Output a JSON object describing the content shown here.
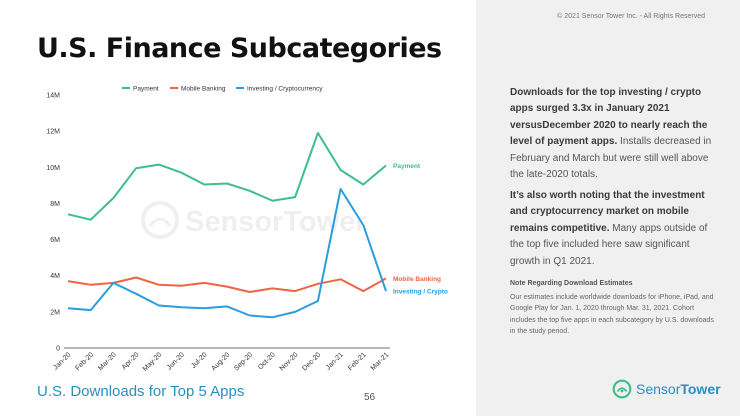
{
  "slide": {
    "title": "U.S. Finance Subcategories",
    "subtitle": "U.S. Downloads for Top 5 Apps",
    "page_number": "56",
    "copyright": "© 2021 Sensor Tower Inc. - All Rights Reserved"
  },
  "sidebar": {
    "p1_bold": "Downloads for the top investing / crypto apps surged 3.3x in January 2021 versusDecember 2020 to nearly reach the level of payment apps.",
    "p1_text": " Installs decreased in February and March but were still well above the late-2020 totals.",
    "p2_bold": "It’s also worth noting that the investment and cryptocurrency market on mobile remains competitive.",
    "p2_text": " Many apps outside of the top five included here saw significant growth in Q1 2021.",
    "note_title": "Note Regarding Download Estimates",
    "note_body": "Our estimates include worldwide downloads for iPhone, iPad, and Google Play for Jan. 1, 2020 through Mar. 31, 2021. Cohort includes the top five apps in each subcategory by U.S. downloads in the study period."
  },
  "logo": {
    "part1": "Sensor",
    "part2": "Tower"
  },
  "watermark": "SensorTower",
  "chart_data": {
    "type": "line",
    "title": "",
    "xlabel": "",
    "ylabel": "",
    "x": [
      "Jan-20",
      "Feb-20",
      "Mar-20",
      "Apr-20",
      "May-20",
      "Jun-20",
      "Jul-20",
      "Aug-20",
      "Sep-20",
      "Oct-20",
      "Nov-20",
      "Dec-20",
      "Jan-21",
      "Feb-21",
      "Mar-21"
    ],
    "yticks": [
      "0",
      "2M",
      "4M",
      "6M",
      "8M",
      "10M",
      "12M",
      "14M"
    ],
    "ylim": [
      0,
      14000000
    ],
    "legend_position": "top",
    "series": [
      {
        "name": "Payment",
        "end_label": "Payment",
        "color": "#3dbf8a",
        "values": [
          7400000,
          7100000,
          8300000,
          9950000,
          10150000,
          9700000,
          9050000,
          9100000,
          8700000,
          8150000,
          8350000,
          11900000,
          9850000,
          9050000,
          10100000
        ]
      },
      {
        "name": "Mobile Banking",
        "end_label": "Mobile Banking",
        "color": "#ef6443",
        "values": [
          3700000,
          3500000,
          3600000,
          3900000,
          3500000,
          3450000,
          3600000,
          3400000,
          3100000,
          3300000,
          3150000,
          3550000,
          3800000,
          3150000,
          3850000
        ]
      },
      {
        "name": "Investing / Cryptocurrency",
        "end_label": "Investing / Crypto",
        "color": "#2a9de0",
        "values": [
          2200000,
          2100000,
          3600000,
          3000000,
          2350000,
          2250000,
          2200000,
          2300000,
          1800000,
          1700000,
          2000000,
          2600000,
          8800000,
          6800000,
          3150000
        ]
      }
    ]
  }
}
